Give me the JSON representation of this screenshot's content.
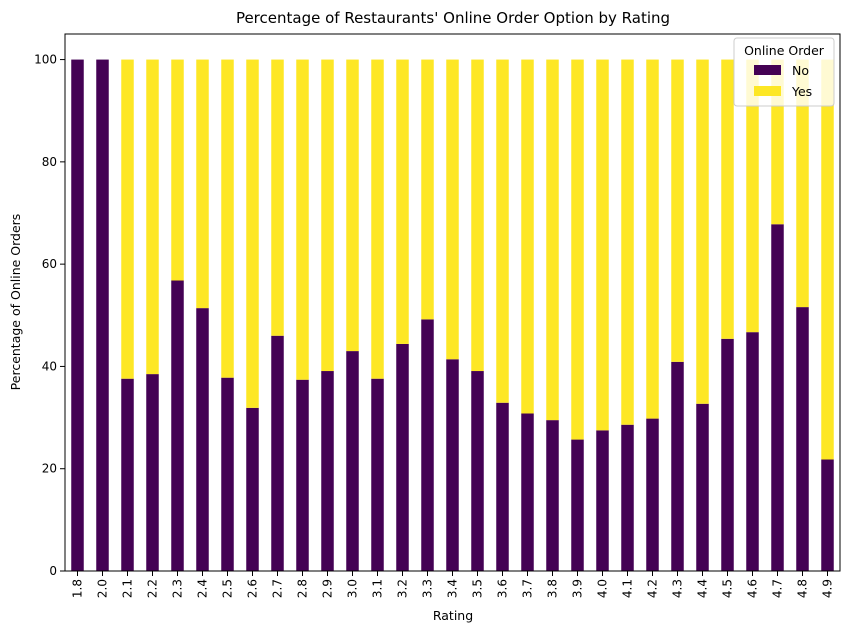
{
  "chart_data": {
    "type": "bar",
    "stacked": true,
    "title": "Percentage of Restaurants' Online Order Option by Rating",
    "xlabel": "Rating",
    "ylabel": "Percentage of Online Orders",
    "ylim": [
      0,
      105
    ],
    "yticks": [
      0,
      20,
      40,
      60,
      80,
      100
    ],
    "categories": [
      "1.8",
      "2.0",
      "2.1",
      "2.2",
      "2.3",
      "2.4",
      "2.5",
      "2.6",
      "2.7",
      "2.8",
      "2.9",
      "3.0",
      "3.1",
      "3.2",
      "3.3",
      "3.4",
      "3.5",
      "3.6",
      "3.7",
      "3.8",
      "3.9",
      "4.0",
      "4.1",
      "4.2",
      "4.3",
      "4.4",
      "4.5",
      "4.6",
      "4.7",
      "4.8",
      "4.9"
    ],
    "series": [
      {
        "name": "No",
        "color": "#440154",
        "values": [
          100,
          100,
          37.6,
          38.5,
          56.8,
          51.4,
          37.8,
          31.9,
          46.0,
          37.4,
          39.1,
          43.0,
          37.6,
          44.4,
          49.2,
          41.4,
          39.1,
          32.9,
          30.8,
          29.5,
          25.7,
          27.5,
          28.6,
          29.8,
          40.9,
          32.7,
          45.4,
          46.7,
          67.8,
          51.6,
          21.8
        ]
      },
      {
        "name": "Yes",
        "color": "#fde725",
        "values": [
          0,
          0,
          62.4,
          61.5,
          43.2,
          48.6,
          62.2,
          68.1,
          54.0,
          62.6,
          60.9,
          57.0,
          62.4,
          55.6,
          50.8,
          58.6,
          60.9,
          67.1,
          69.2,
          70.5,
          74.3,
          72.5,
          71.4,
          70.2,
          59.1,
          67.3,
          54.6,
          53.3,
          32.2,
          48.4,
          78.2
        ]
      }
    ],
    "legend": {
      "title": "Online Order",
      "placement": "top-right"
    },
    "grid": false
  }
}
